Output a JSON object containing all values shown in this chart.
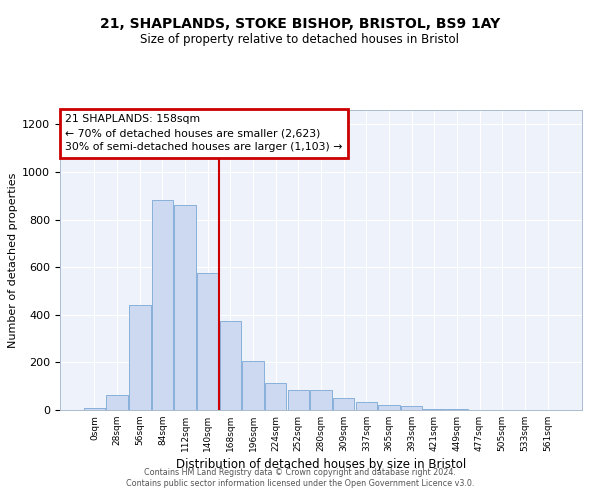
{
  "title": "21, SHAPLANDS, STOKE BISHOP, BRISTOL, BS9 1AY",
  "subtitle": "Size of property relative to detached houses in Bristol",
  "xlabel": "Distribution of detached houses by size in Bristol",
  "ylabel": "Number of detached properties",
  "bin_labels": [
    "0sqm",
    "28sqm",
    "56sqm",
    "84sqm",
    "112sqm",
    "140sqm",
    "168sqm",
    "196sqm",
    "224sqm",
    "252sqm",
    "280sqm",
    "309sqm",
    "337sqm",
    "365sqm",
    "393sqm",
    "421sqm",
    "449sqm",
    "477sqm",
    "505sqm",
    "533sqm",
    "561sqm"
  ],
  "bar_values": [
    10,
    65,
    440,
    880,
    860,
    575,
    375,
    205,
    115,
    85,
    85,
    50,
    35,
    20,
    15,
    5,
    5,
    2,
    2,
    1,
    1
  ],
  "bar_color": "#ccd9f0",
  "bar_edge_color": "#7ba7d4",
  "property_line_bin": 6,
  "annotation_title": "21 SHAPLANDS: 158sqm",
  "annotation_line1": "← 70% of detached houses are smaller (2,623)",
  "annotation_line2": "30% of semi-detached houses are larger (1,103) →",
  "annotation_box_color": "#cc0000",
  "vline_color": "#cc0000",
  "ylim": [
    0,
    1260
  ],
  "yticks": [
    0,
    200,
    400,
    600,
    800,
    1000,
    1200
  ],
  "background_color": "#eef2fa",
  "grid_color": "#ffffff",
  "title_fontsize": 10,
  "subtitle_fontsize": 8.5,
  "footer_line1": "Contains HM Land Registry data © Crown copyright and database right 2024.",
  "footer_line2": "Contains public sector information licensed under the Open Government Licence v3.0."
}
